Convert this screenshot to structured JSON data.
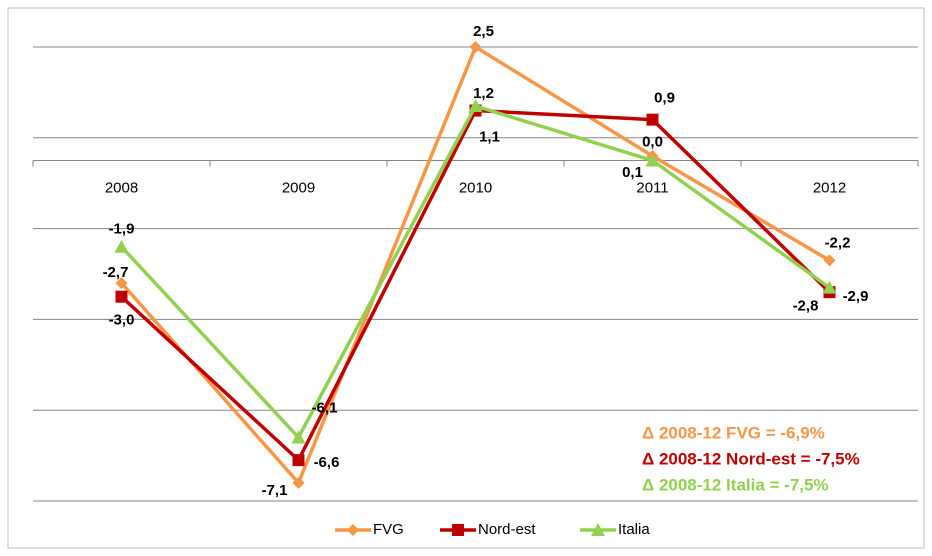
{
  "chart_data": {
    "type": "line",
    "categories": [
      "2008",
      "2009",
      "2010",
      "2011",
      "2012"
    ],
    "series": [
      {
        "name": "FVG",
        "color": "#f79646",
        "marker": "diamond",
        "values": [
          -2.7,
          -7.1,
          2.5,
          0.1,
          -2.2
        ],
        "value_labels": [
          "-2,7",
          "-7,1",
          "2,5",
          "0,1",
          "-2,2"
        ]
      },
      {
        "name": "Nord-est",
        "color": "#c00000",
        "marker": "square",
        "values": [
          -3.0,
          -6.6,
          1.1,
          0.9,
          -2.9
        ],
        "value_labels": [
          "-3,0",
          "-6,6",
          "1,1",
          "0,9",
          "-2,9"
        ]
      },
      {
        "name": "Italia",
        "color": "#92d050",
        "marker": "triangle",
        "values": [
          -1.9,
          -6.1,
          1.2,
          0.0,
          -2.8
        ],
        "value_labels": [
          "-1,9",
          "-6,1",
          "1,2",
          "0,0",
          "-2,8"
        ]
      }
    ],
    "ylim": [
      -7.5,
      2.5
    ],
    "yticks": [
      -7.5,
      -5.5,
      -3.5,
      -1.5,
      0.5,
      2.5
    ],
    "grid": true,
    "annotations": [
      {
        "text": "Δ 2008-12 FVG = -6,9%",
        "color": "#f79646"
      },
      {
        "text": "Δ 2008-12 Nord-est = -7,5%",
        "color": "#c00000"
      },
      {
        "text": "Δ 2008-12 Italia = -7,5%",
        "color": "#92d050"
      }
    ],
    "legend": "bottom"
  }
}
